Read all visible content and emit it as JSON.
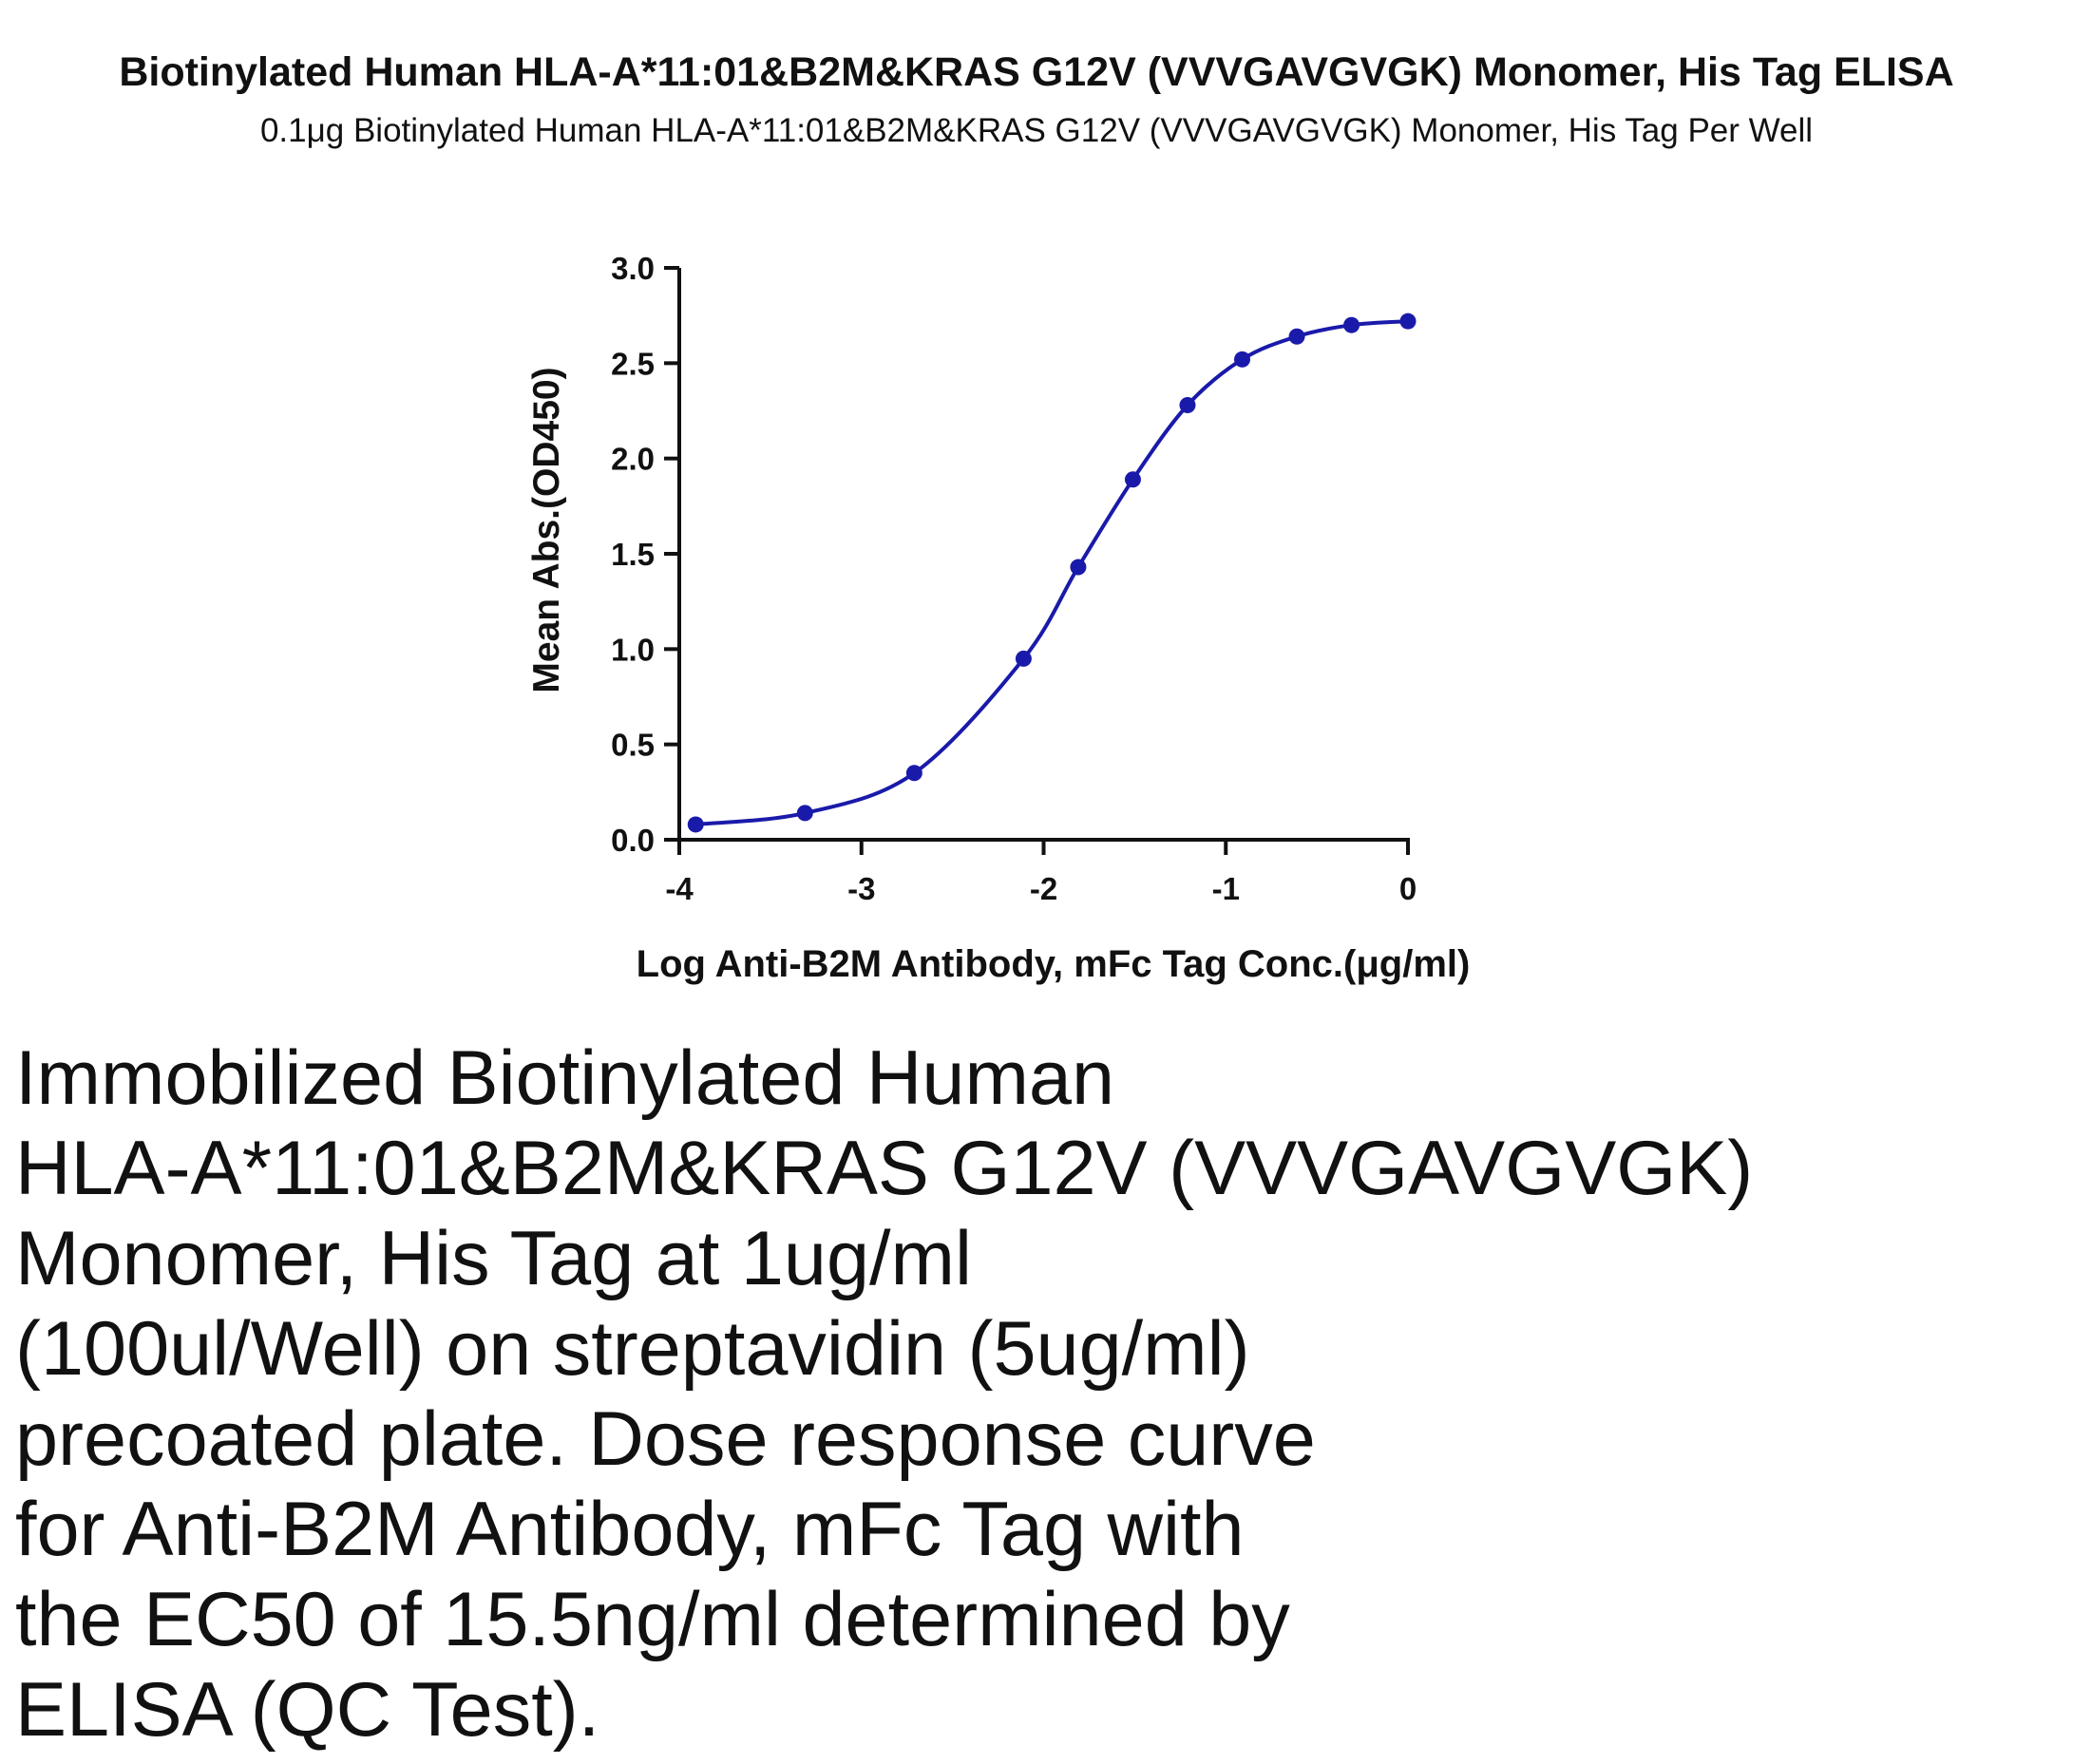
{
  "chart_data": {
    "type": "line",
    "title": "Biotinylated Human HLA-A*11:01&B2M&KRAS G12V (VVVGAVGVGK) Monomer, His Tag ELISA",
    "subtitle": "0.1μg Biotinylated Human HLA-A*11:01&B2M&KRAS G12V (VVVGAVGVGK) Monomer, His Tag Per Well",
    "xlabel": "Log Anti-B2M Antibody, mFc Tag Conc.(μg/ml)",
    "ylabel": "Mean Abs.(OD450)",
    "xlim": [
      -4,
      0
    ],
    "ylim": [
      0,
      3.0
    ],
    "x_ticks": [
      -4,
      -3,
      -2,
      -1,
      0
    ],
    "x_tick_labels": [
      "-4",
      "-3",
      "-2",
      "-1",
      "0"
    ],
    "y_ticks": [
      0,
      0.5,
      1.0,
      1.5,
      2.0,
      2.5,
      3.0
    ],
    "y_tick_labels": [
      "0.0",
      "0.5",
      "1.0",
      "1.5",
      "2.0",
      "2.5",
      "3.0"
    ],
    "grid": false,
    "series": [
      {
        "color": "#1a1aaa",
        "x": [
          -3.91,
          -3.31,
          -2.71,
          -2.11,
          -1.81,
          -1.51,
          -1.21,
          -0.91,
          -0.61,
          -0.31,
          0.0
        ],
        "y": [
          0.08,
          0.14,
          0.35,
          0.95,
          1.43,
          1.89,
          2.28,
          2.52,
          2.64,
          2.7,
          2.72
        ]
      }
    ]
  },
  "caption_lines": [
    "Immobilized Biotinylated Human",
    "HLA-A*11:01&B2M&KRAS G12V (VVVGAVGVGK)",
    "Monomer, His Tag at 1ug/ml",
    "(100ul/Well) on streptavidin (5ug/ml)",
    "precoated plate. Dose response curve",
    "for Anti-B2M Antibody, mFc Tag with",
    "the EC50 of 15.5ng/ml determined by",
    "ELISA (QC Test)."
  ]
}
